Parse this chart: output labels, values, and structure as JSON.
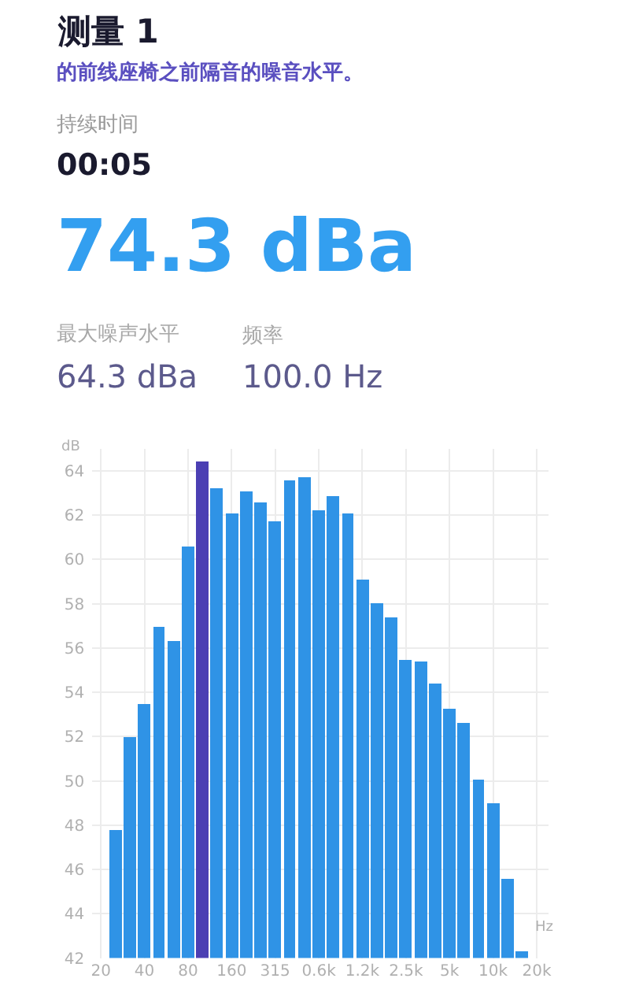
{
  "chart_data": [
    {
      "type": "other",
      "title": "测量 1",
      "subtitle": "的前线座椅之前隔音的噪音水平。",
      "annotations": [
        "持续时间",
        "00:05",
        "74.3 dBa",
        "最大噪声水平",
        "频率",
        "64.3 dBa",
        "100.0 Hz"
      ]
    },
    {
      "type": "bar",
      "ylabel": "dB",
      "xlabel": "Hz",
      "categories": [
        "20",
        null,
        null,
        "40",
        null,
        null,
        "80",
        null,
        null,
        "160",
        null,
        null,
        "315",
        null,
        null,
        "0.6k",
        null,
        null,
        "1.2k",
        null,
        null,
        "2.5k",
        null,
        null,
        "5k",
        null,
        null,
        "10k",
        null,
        null,
        "20k"
      ],
      "values": [
        null,
        47.8,
        52.0,
        53.5,
        57.0,
        56.3,
        60.6,
        64.4,
        63.2,
        62.1,
        63.1,
        62.6,
        61.7,
        63.6,
        63.7,
        62.2,
        62.9,
        62.1,
        59.1,
        58.0,
        57.4,
        55.5,
        55.4,
        54.4,
        53.3,
        52.6,
        50.1,
        49.0,
        45.6,
        42.3,
        null
      ],
      "colors": [
        "#2f93e6",
        "#2f93e6",
        "#2f93e6",
        "#2f93e6",
        "#2f93e6",
        "#2f93e6",
        "#2f93e6",
        "#4b3fb3",
        "#2f93e6",
        "#2f93e6",
        "#2f93e6",
        "#2f93e6",
        "#2f93e6",
        "#2f93e6",
        "#2f93e6",
        "#2f93e6",
        "#2f93e6",
        "#2f93e6",
        "#2f93e6",
        "#2f93e6",
        "#2f93e6",
        "#2f93e6",
        "#2f93e6",
        "#2f93e6",
        "#2f93e6",
        "#2f93e6",
        "#2f93e6",
        "#2f93e6",
        "#2f93e6",
        "#2f93e6",
        "#2f93e6"
      ],
      "ylim": [
        42,
        65
      ],
      "yticks": [
        42,
        44,
        46,
        48,
        50,
        52,
        54,
        56,
        58,
        60,
        62,
        64
      ],
      "grid": true
    }
  ]
}
